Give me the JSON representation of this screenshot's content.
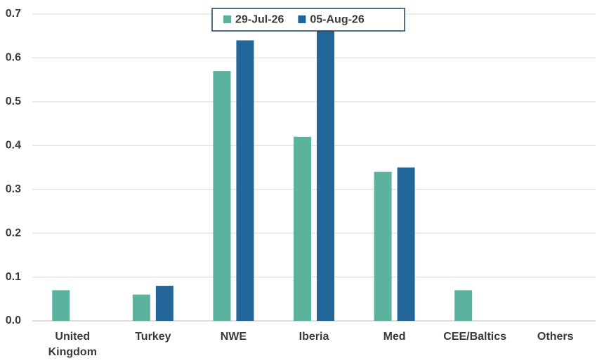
{
  "chart_data": {
    "type": "bar",
    "categories": [
      "United Kingdom",
      "Turkey",
      "NWE",
      "Iberia",
      "Med",
      "CEE/Baltics",
      "Others"
    ],
    "series": [
      {
        "name": "29-Jul-26",
        "color": "#5bb39d",
        "values": [
          0.07,
          0.06,
          0.57,
          0.42,
          0.34,
          0.07,
          null
        ]
      },
      {
        "name": "05-Aug-26",
        "color": "#236699",
        "values": [
          null,
          0.08,
          0.64,
          0.69,
          0.35,
          null,
          null
        ]
      }
    ],
    "ylim": [
      0,
      0.7
    ],
    "yticks": [
      {
        "value": 0,
        "label": "0.0"
      },
      0.1,
      0.2,
      0.3,
      0.4,
      0.5,
      0.6,
      0.7
    ],
    "grid": true,
    "legend": "top"
  }
}
